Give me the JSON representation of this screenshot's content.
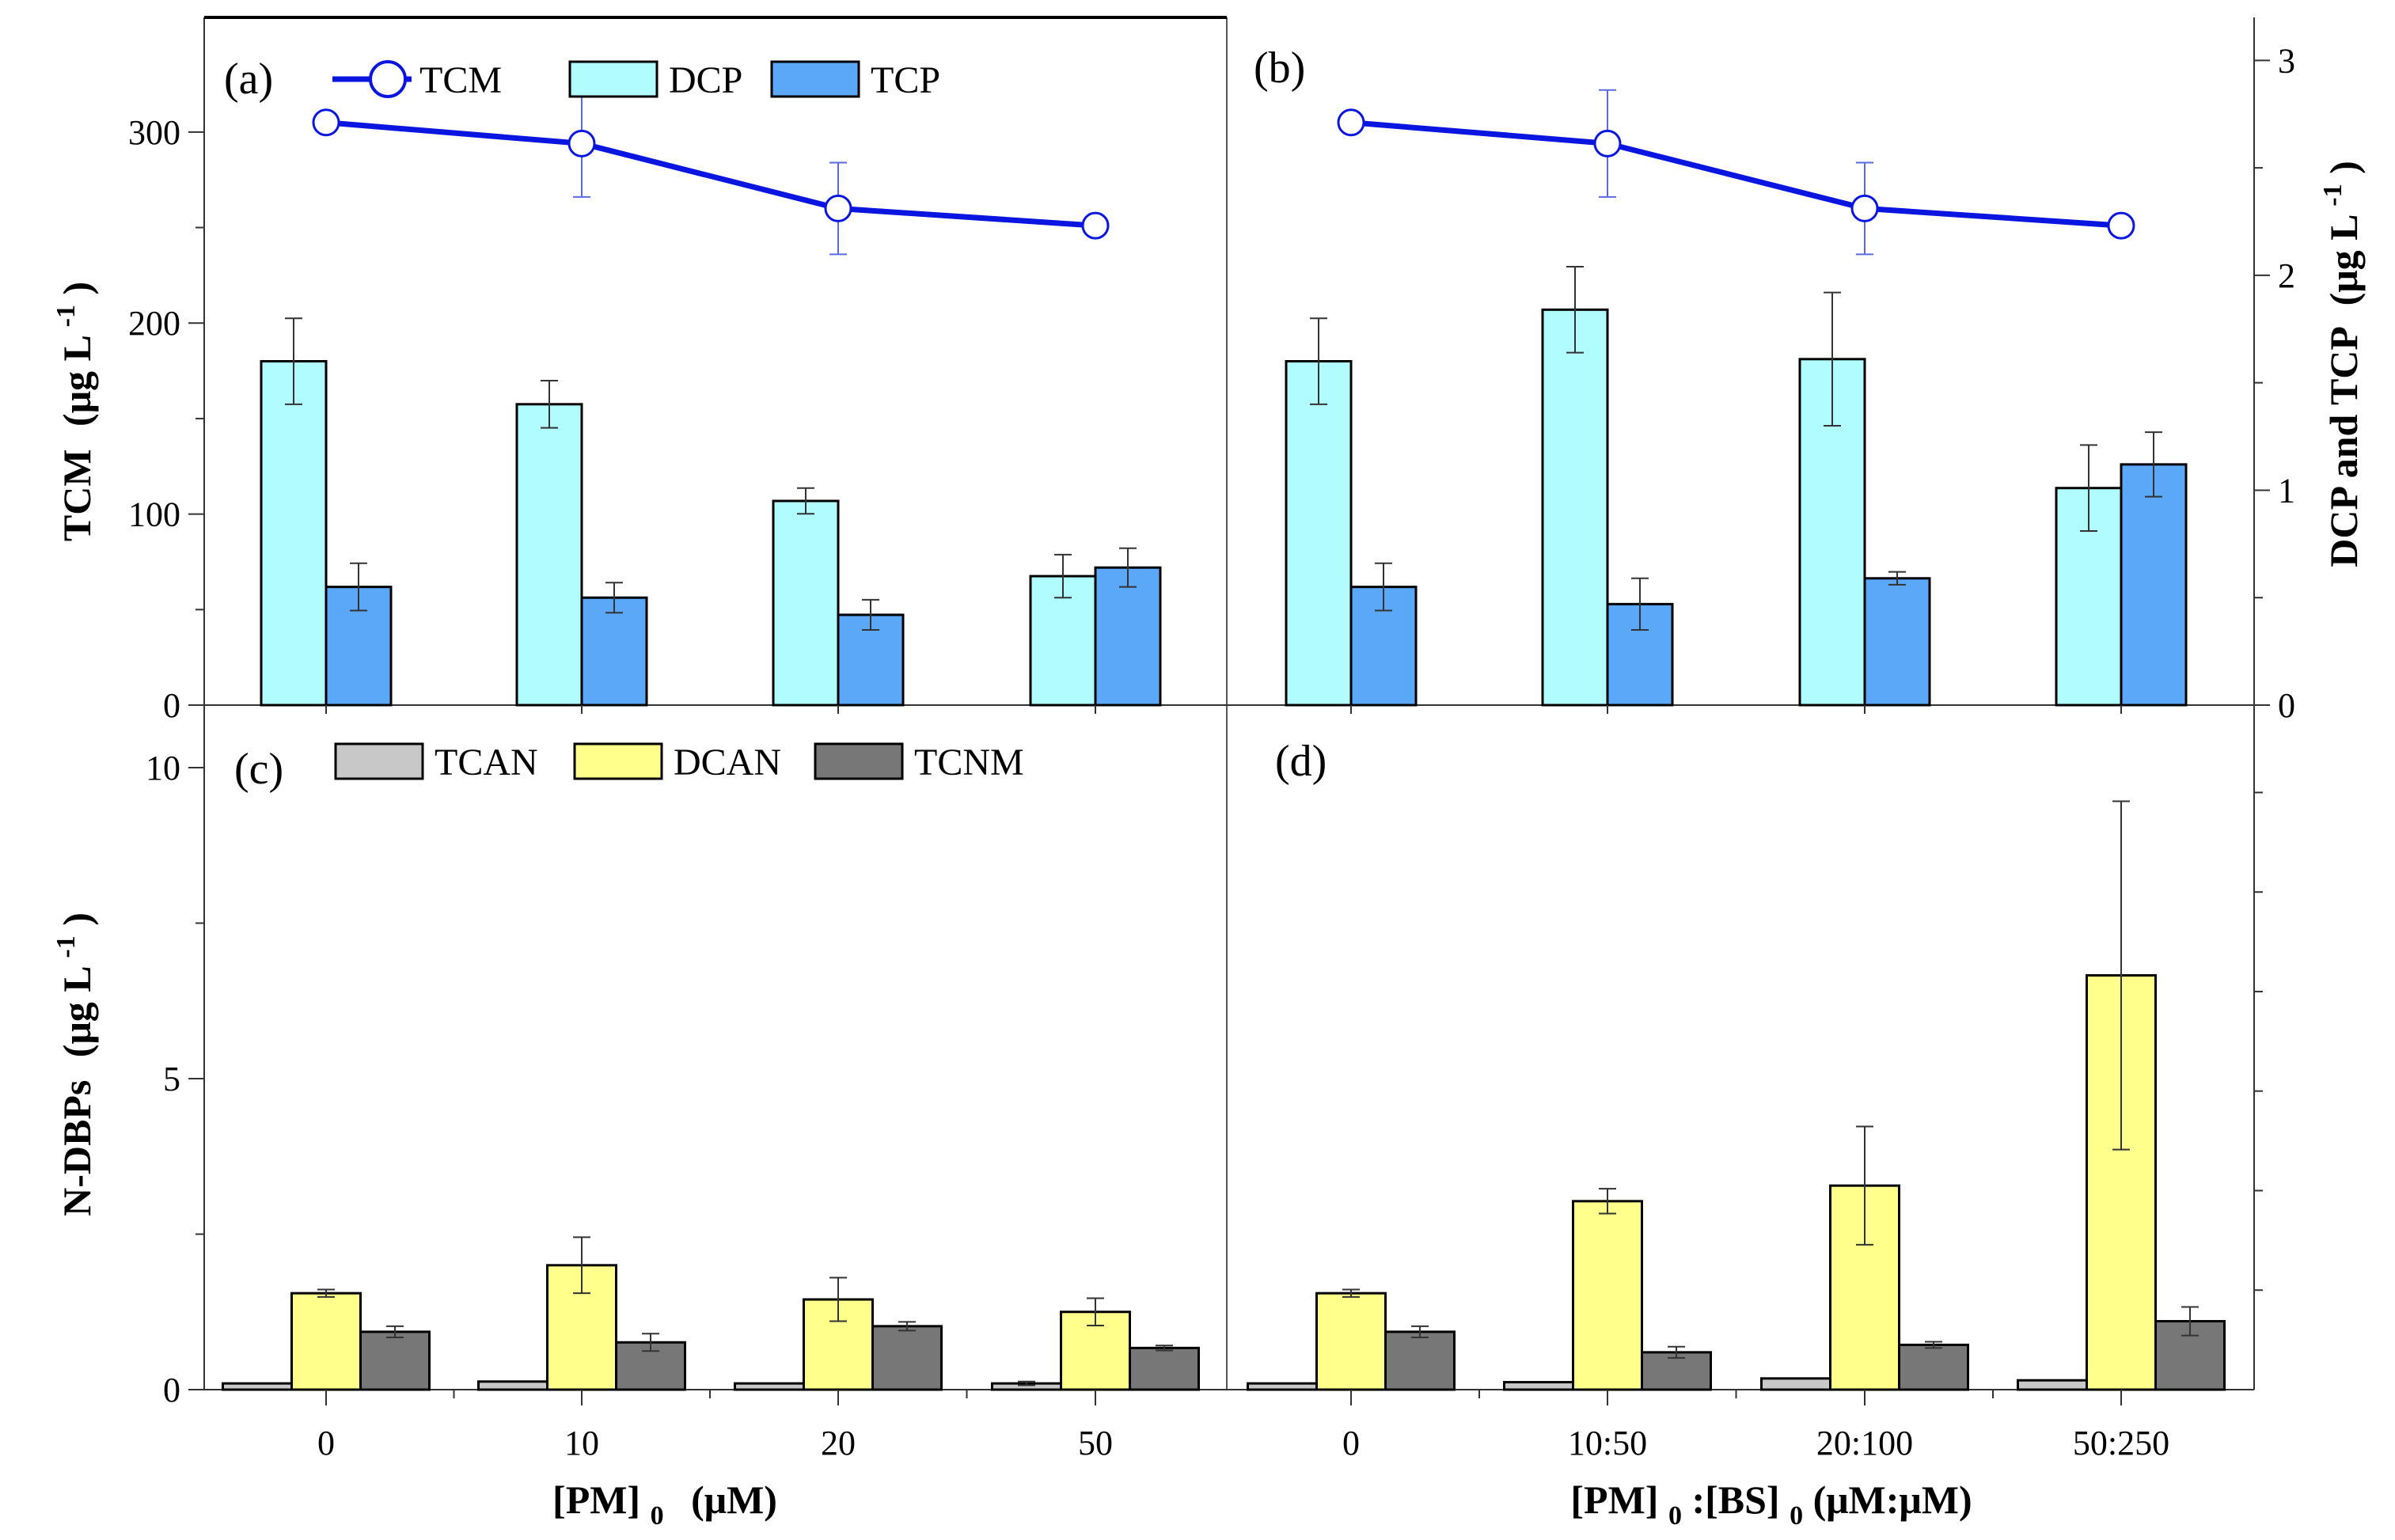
{
  "chart_data": [
    {
      "panel": "(a)",
      "type": "bar+line",
      "categories": [
        "0",
        "10",
        "20",
        "50"
      ],
      "xlabel": "",
      "ylabel_left": "TCM",
      "ylabel_left_unit": "(μg L",
      "ylabel_left_sup": "-1",
      "ylim_left": [
        0,
        360
      ],
      "yticks_left": [
        0,
        100,
        200,
        300
      ],
      "ylim_right": [
        0,
        3.0
      ],
      "series": [
        {
          "name": "TCM",
          "kind": "line",
          "axis": "left",
          "color": "#0a16e0",
          "values": [
            305,
            294,
            260,
            251
          ],
          "errors": [
            0,
            28,
            24,
            0
          ]
        },
        {
          "name": "DCP",
          "kind": "bar",
          "axis": "right",
          "color": "#b0fcff",
          "values": [
            1.6,
            1.4,
            0.95,
            0.6
          ],
          "errors": [
            0.2,
            0.11,
            0.06,
            0.1
          ]
        },
        {
          "name": "TCP",
          "kind": "bar",
          "axis": "right",
          "color": "#5ca8f8",
          "values": [
            0.55,
            0.5,
            0.42,
            0.64
          ],
          "errors": [
            0.11,
            0.07,
            0.07,
            0.09
          ]
        }
      ]
    },
    {
      "panel": "(b)",
      "type": "bar+line",
      "categories": [
        "0",
        "10:50",
        "20:100",
        "50:250"
      ],
      "xlabel": "",
      "ylabel_right": "DCP and TCP",
      "ylabel_right_unit": "(μg L",
      "ylabel_right_sup": "-1",
      "ylim_left": [
        0,
        360
      ],
      "ylim_right": [
        0,
        3.0
      ],
      "yticks_right": [
        0,
        1,
        2,
        3
      ],
      "series": [
        {
          "name": "TCM",
          "kind": "line",
          "axis": "left",
          "color": "#0a16e0",
          "values": [
            305,
            294,
            260,
            251
          ],
          "errors": [
            0,
            28,
            24,
            0
          ]
        },
        {
          "name": "DCP",
          "kind": "bar",
          "axis": "right",
          "color": "#b0fcff",
          "values": [
            1.6,
            1.84,
            1.61,
            1.01
          ],
          "errors": [
            0.2,
            0.2,
            0.31,
            0.2
          ]
        },
        {
          "name": "TCP",
          "kind": "bar",
          "axis": "right",
          "color": "#5ca8f8",
          "values": [
            0.55,
            0.47,
            0.59,
            1.12
          ],
          "errors": [
            0.11,
            0.12,
            0.03,
            0.15
          ]
        }
      ]
    },
    {
      "panel": "(c)",
      "type": "bar",
      "categories": [
        "0",
        "10",
        "20",
        "50"
      ],
      "xlabel": "[PM]",
      "xlabel_sub": "0",
      "xlabel_unit": "(μM)",
      "ylabel": "N-DBPs",
      "ylabel_unit": "(μg L",
      "ylabel_sup": "-1",
      "ylim": [
        0,
        10
      ],
      "yticks": [
        0,
        5,
        10
      ],
      "series": [
        {
          "name": "TCAN",
          "color": "#c8c8c8",
          "values": [
            0.1,
            0.13,
            0.1,
            0.1
          ],
          "errors": [
            0,
            0,
            0,
            0.03
          ]
        },
        {
          "name": "DCAN",
          "color": "#ffff8c",
          "values": [
            1.55,
            2.0,
            1.45,
            1.25
          ],
          "errors": [
            0.06,
            0.45,
            0.35,
            0.22
          ]
        },
        {
          "name": "TCNM",
          "color": "#777777",
          "values": [
            0.93,
            0.76,
            1.02,
            0.67
          ],
          "errors": [
            0.09,
            0.14,
            0.07,
            0.04
          ]
        }
      ]
    },
    {
      "panel": "(d)",
      "type": "bar",
      "categories": [
        "0",
        "10:50",
        "20:100",
        "50:250"
      ],
      "xlabel": "[PM]",
      "xlabel_sub": "0",
      "xlabel_mid": ":[BS]",
      "xlabel_sub2": "0",
      "xlabel_unit": " (μM:μM)",
      "ylim": [
        0,
        10
      ],
      "series": [
        {
          "name": "TCAN",
          "color": "#c8c8c8",
          "values": [
            0.1,
            0.12,
            0.18,
            0.15
          ],
          "errors": [
            0,
            0,
            0,
            0
          ]
        },
        {
          "name": "DCAN",
          "color": "#ffff8c",
          "values": [
            1.55,
            3.03,
            3.28,
            6.66
          ],
          "errors": [
            0.06,
            0.2,
            0.95,
            2.8
          ]
        },
        {
          "name": "TCNM",
          "color": "#777777",
          "values": [
            0.93,
            0.6,
            0.72,
            1.1
          ],
          "errors": [
            0.09,
            0.09,
            0.05,
            0.23
          ]
        }
      ]
    }
  ],
  "legends": {
    "top": [
      {
        "name": "TCM",
        "kind": "line",
        "color": "#0a16e0"
      },
      {
        "name": "DCP",
        "kind": "box",
        "color": "#b0fcff"
      },
      {
        "name": "TCP",
        "kind": "box",
        "color": "#5ca8f8"
      }
    ],
    "bottom": [
      {
        "name": "TCAN",
        "kind": "box",
        "color": "#c8c8c8"
      },
      {
        "name": "DCAN",
        "kind": "box",
        "color": "#ffff8c"
      },
      {
        "name": "TCNM",
        "kind": "box",
        "color": "#777777"
      }
    ]
  }
}
